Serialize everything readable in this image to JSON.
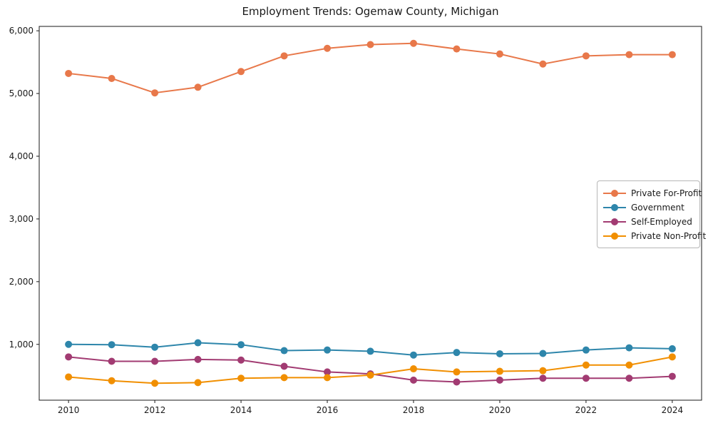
{
  "chart_data": {
    "type": "line",
    "title": "Employment Trends: Ogemaw County, Michigan",
    "xlabel": "",
    "ylabel": "",
    "grid": false,
    "legend_position": "center-right",
    "background_color": "#ffffff",
    "axis_color": "#1a1a1a",
    "x": [
      2010,
      2011,
      2012,
      2013,
      2014,
      2015,
      2016,
      2017,
      2018,
      2019,
      2020,
      2021,
      2022,
      2023,
      2024
    ],
    "x_ticks": [
      2010,
      2012,
      2014,
      2016,
      2018,
      2020,
      2022,
      2024
    ],
    "x_tick_labels": [
      "2010",
      "2012",
      "2014",
      "2016",
      "2018",
      "2020",
      "2022",
      "2024"
    ],
    "y_ticks": [
      1000,
      2000,
      3000,
      4000,
      5000,
      6000
    ],
    "y_tick_labels": [
      "1,000",
      "2,000",
      "3,000",
      "4,000",
      "5,000",
      "6,000"
    ],
    "xlim": [
      2009.32,
      2024.68
    ],
    "ylim": [
      110,
      6070
    ],
    "series": [
      {
        "name": "Private For-Profit",
        "color": "#E8784A",
        "values": [
          5320,
          5240,
          5010,
          5100,
          5350,
          5600,
          5720,
          5780,
          5800,
          5710,
          5630,
          5470,
          5600,
          5620,
          5620
        ]
      },
      {
        "name": "Government",
        "color": "#2E86AB",
        "values": [
          1000,
          995,
          955,
          1025,
          995,
          900,
          910,
          890,
          830,
          870,
          850,
          855,
          910,
          945,
          930
        ]
      },
      {
        "name": "Self-Employed",
        "color": "#A23B72",
        "values": [
          800,
          730,
          730,
          760,
          750,
          650,
          560,
          530,
          430,
          400,
          430,
          460,
          460,
          460,
          490
        ]
      },
      {
        "name": "Private Non-Profit",
        "color": "#F18F01",
        "values": [
          480,
          420,
          380,
          390,
          460,
          470,
          470,
          510,
          610,
          560,
          570,
          580,
          670,
          670,
          800
        ]
      }
    ]
  }
}
